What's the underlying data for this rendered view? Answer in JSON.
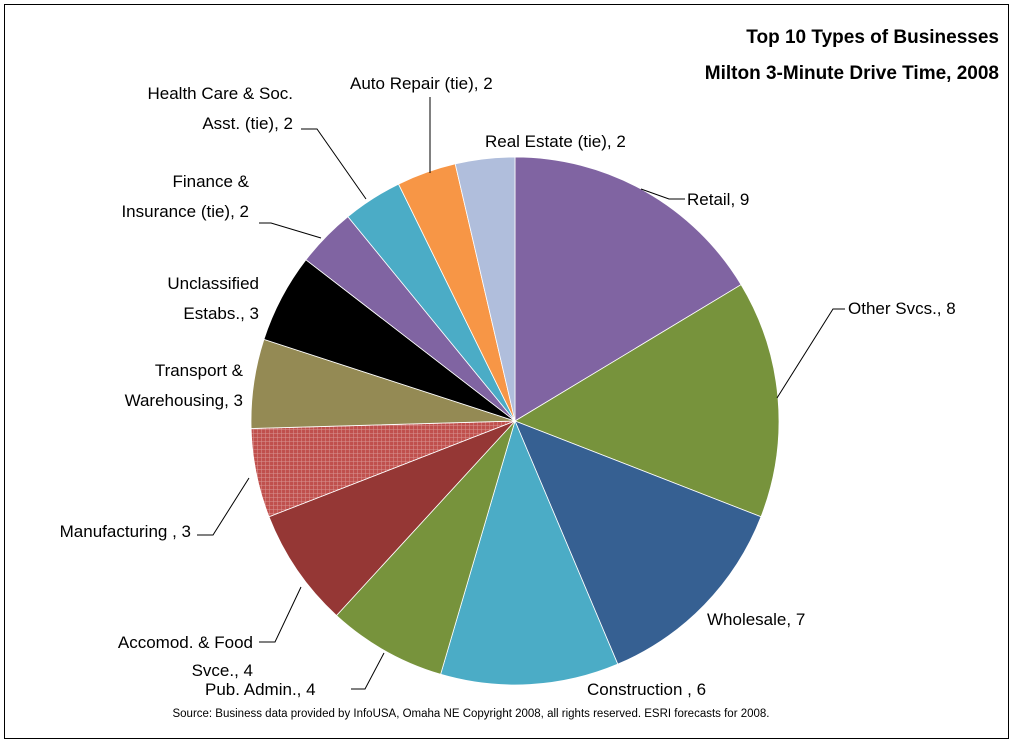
{
  "chart_data": {
    "type": "pie",
    "title": "Top 10 Types of Businesses",
    "subtitle": "Milton 3-Minute Drive Time, 2008",
    "source": "Source:  Business data provided by InfoUSA, Omaha NE  Copyright 2008, all rights reserved.  ESRI forecasts for 2008.",
    "slices": [
      {
        "label": "Retail, 9",
        "category": "Retail",
        "value": 9,
        "color": "#8064A2"
      },
      {
        "label": "Other Svcs., 8",
        "category": "Other Svcs.",
        "value": 8,
        "color": "#77933C"
      },
      {
        "label": "Wholesale, 7",
        "category": "Wholesale",
        "value": 7,
        "color": "#366092"
      },
      {
        "label": "Construction , 6",
        "category": "Construction",
        "value": 6,
        "color": "#4BACC6"
      },
      {
        "label": "Pub. Admin., 4",
        "category": "Pub. Admin.",
        "value": 4,
        "color": "#77933C"
      },
      {
        "label_lines": [
          "Accomod. & Food",
          "Svce., 4"
        ],
        "category": "Accomod. & Food Svce.",
        "value": 4,
        "color": "#953735"
      },
      {
        "label": "Manufacturing , 3",
        "category": "Manufacturing",
        "value": 3,
        "color": "#C0504D",
        "pattern": "grid"
      },
      {
        "label_lines": [
          "Transport &",
          "Warehousing, 3"
        ],
        "category": "Transport & Warehousing",
        "value": 3,
        "color": "#948A54"
      },
      {
        "label_lines": [
          "Unclassified",
          "Estabs., 3"
        ],
        "category": "Unclassified Estabs.",
        "value": 3,
        "color": "#000000"
      },
      {
        "label_lines": [
          "Finance &",
          "Insurance (tie), 2"
        ],
        "category": "Finance & Insurance (tie)",
        "value": 2,
        "color": "#8064A2"
      },
      {
        "label_lines": [
          "Health Care & Soc.",
          "Asst. (tie), 2"
        ],
        "category": "Health Care & Soc. Asst. (tie)",
        "value": 2,
        "color": "#4BACC6"
      },
      {
        "label": "Auto Repair (tie), 2",
        "category": "Auto Repair (tie)",
        "value": 2,
        "color": "#F79646"
      },
      {
        "label": "Real Estate (tie), 2",
        "category": "Real Estate (tie)",
        "value": 2,
        "color": "#B0BEDC"
      }
    ]
  }
}
